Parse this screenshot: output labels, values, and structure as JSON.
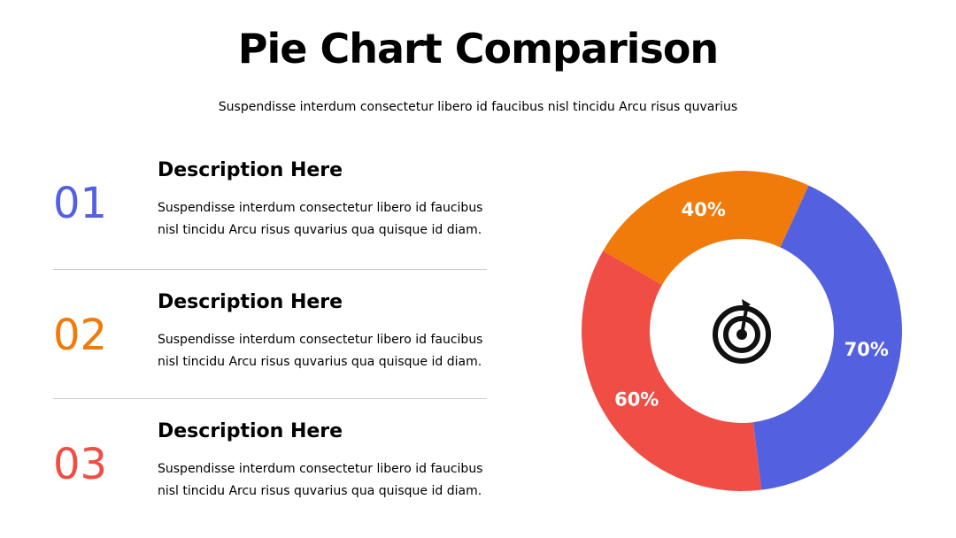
{
  "header": {
    "title": "Pie Chart Comparison",
    "subtitle": "Suspendisse interdum consectetur libero id faucibus nisl tincidu Arcu risus quvarius"
  },
  "items": [
    {
      "number": "01",
      "color": "#5361e0",
      "heading": "Description Here",
      "lines": [
        "Suspendisse interdum consectetur libero id faucibus",
        "nisl tincidu Arcu risus quvarius qua quisque id diam."
      ]
    },
    {
      "number": "02",
      "color": "#f07a0a",
      "heading": "Description Here",
      "lines": [
        "Suspendisse interdum consectetur libero id faucibus",
        "nisl tincidu Arcu risus quvarius qua quisque id diam."
      ]
    },
    {
      "number": "03",
      "color": "#f04e45",
      "heading": "Description Here",
      "lines": [
        "Suspendisse interdum consectetur libero id faucibus",
        "nisl tincidu Arcu risus quvarius qua quisque id diam."
      ]
    }
  ],
  "chart_data": {
    "type": "donut",
    "values": [
      40,
      70,
      60
    ],
    "value_labels": [
      "40%",
      "70%",
      "60%"
    ],
    "colors": [
      "#f07a0a",
      "#5361e0",
      "#f04e45"
    ]
  }
}
